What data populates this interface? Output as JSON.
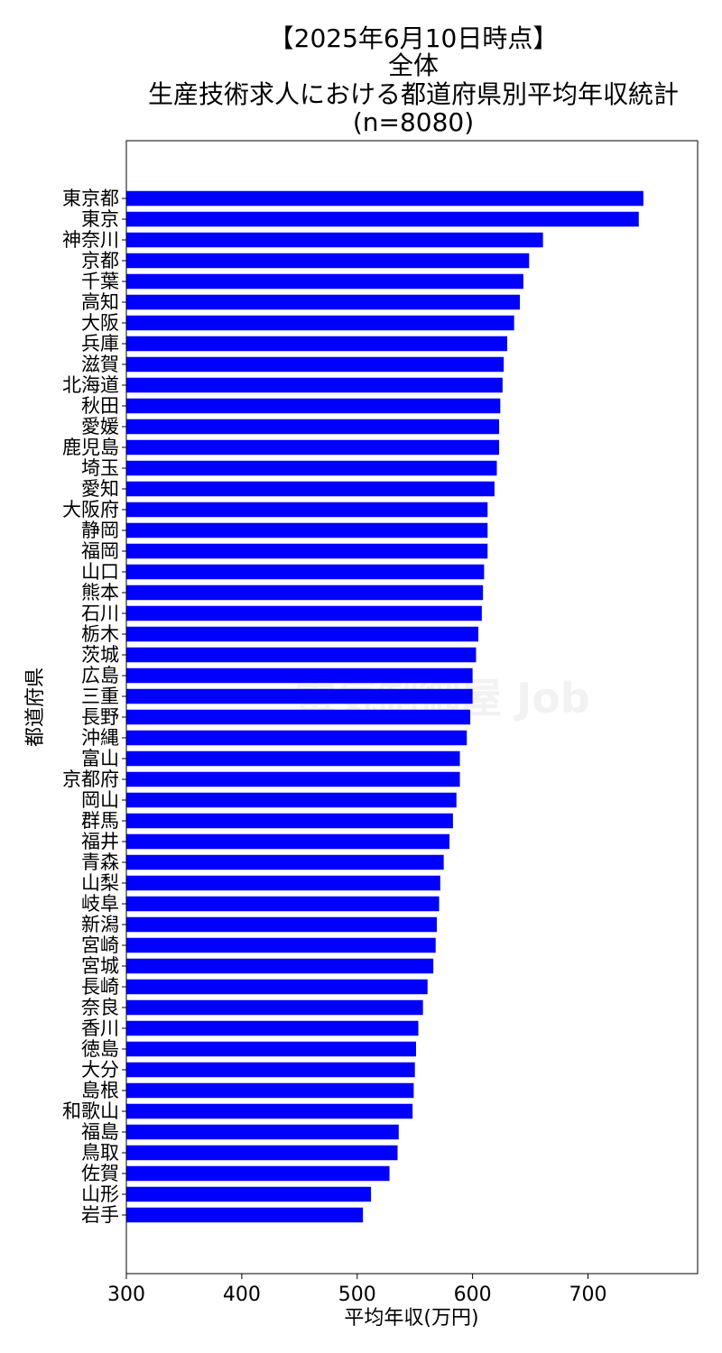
{
  "chart_data": {
    "type": "bar",
    "orientation": "horizontal",
    "title_lines": [
      "【2025年6月10日時点】",
      "全体",
      "生産技術求人における都道府県別平均年収統計",
      "(n=8080)"
    ],
    "xlabel": "平均年収(万円)",
    "ylabel": "都道府県",
    "xlim": [
      300,
      795
    ],
    "xticks": [
      300,
      400,
      500,
      600,
      700
    ],
    "grid": false,
    "bar_color": "#0000ff",
    "watermark": "電気制御屋 Job",
    "categories": [
      "東京都",
      "東京",
      "神奈川",
      "京都",
      "千葉",
      "高知",
      "大阪",
      "兵庫",
      "滋賀",
      "北海道",
      "秋田",
      "愛媛",
      "鹿児島",
      "埼玉",
      "愛知",
      "大阪府",
      "静岡",
      "福岡",
      "山口",
      "熊本",
      "石川",
      "栃木",
      "茨城",
      "広島",
      "三重",
      "長野",
      "沖縄",
      "富山",
      "京都府",
      "岡山",
      "群馬",
      "福井",
      "青森",
      "山梨",
      "岐阜",
      "新潟",
      "宮崎",
      "宮城",
      "長崎",
      "奈良",
      "香川",
      "徳島",
      "大分",
      "島根",
      "和歌山",
      "福島",
      "鳥取",
      "佐賀",
      "山形",
      "岩手"
    ],
    "values": [
      748,
      744,
      661,
      649,
      644,
      641,
      636,
      630,
      627,
      626,
      624,
      623,
      623,
      621,
      619,
      613,
      613,
      613,
      610,
      609,
      608,
      605,
      603,
      600,
      600,
      598,
      595,
      589,
      589,
      586,
      583,
      580,
      575,
      572,
      571,
      569,
      568,
      566,
      561,
      557,
      553,
      551,
      550,
      549,
      548,
      536,
      535,
      528,
      512,
      505
    ]
  }
}
